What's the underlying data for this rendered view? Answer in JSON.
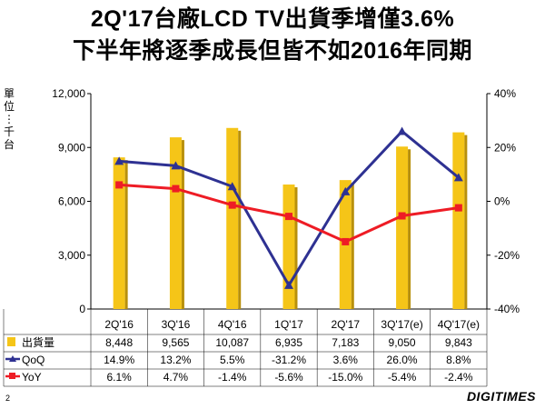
{
  "title_line1": "2Q'17台廠LCD TV出貨季增僅3.6%",
  "title_line2": "下半年將逐季成長但皆不如2016年同期",
  "unit_label": "單位：千台",
  "page_number": "2",
  "brand": "DIGITIMES",
  "colors": {
    "bars": "#F5C518",
    "qoq": "#2E3192",
    "yoy": "#EE1C25"
  },
  "chart_data": {
    "type": "bar",
    "categories": [
      "2Q'16",
      "3Q'16",
      "4Q'16",
      "1Q'17",
      "2Q'17",
      "3Q'17(e)",
      "4Q'17(e)"
    ],
    "series": [
      {
        "name": "出貨量",
        "type": "bar",
        "axis": "left",
        "values": [
          8448,
          9565,
          10087,
          6935,
          7183,
          9050,
          9843
        ],
        "labels": [
          "8,448",
          "9,565",
          "10,087",
          "6,935",
          "7,183",
          "9,050",
          "9,843"
        ]
      },
      {
        "name": "QoQ",
        "type": "line",
        "axis": "right",
        "values": [
          14.9,
          13.2,
          5.5,
          -31.2,
          3.6,
          26.0,
          8.8
        ],
        "labels": [
          "14.9%",
          "13.2%",
          "5.5%",
          "-31.2%",
          "3.6%",
          "26.0%",
          "8.8%"
        ]
      },
      {
        "name": "YoY",
        "type": "line",
        "axis": "right",
        "values": [
          6.1,
          4.7,
          -1.4,
          -5.6,
          -15.0,
          -5.4,
          -2.4
        ],
        "labels": [
          "6.1%",
          "4.7%",
          "-1.4%",
          "-5.6%",
          "-15.0%",
          "-5.4%",
          "-2.4%"
        ]
      }
    ],
    "ylim_left": [
      0,
      12000
    ],
    "yticks_left": [
      "0",
      "3,000",
      "6,000",
      "9,000",
      "12,000"
    ],
    "ylim_right": [
      -40,
      40
    ],
    "yticks_right": [
      "-40%",
      "-20%",
      "0%",
      "20%",
      "40%"
    ],
    "legend": "data-table"
  }
}
